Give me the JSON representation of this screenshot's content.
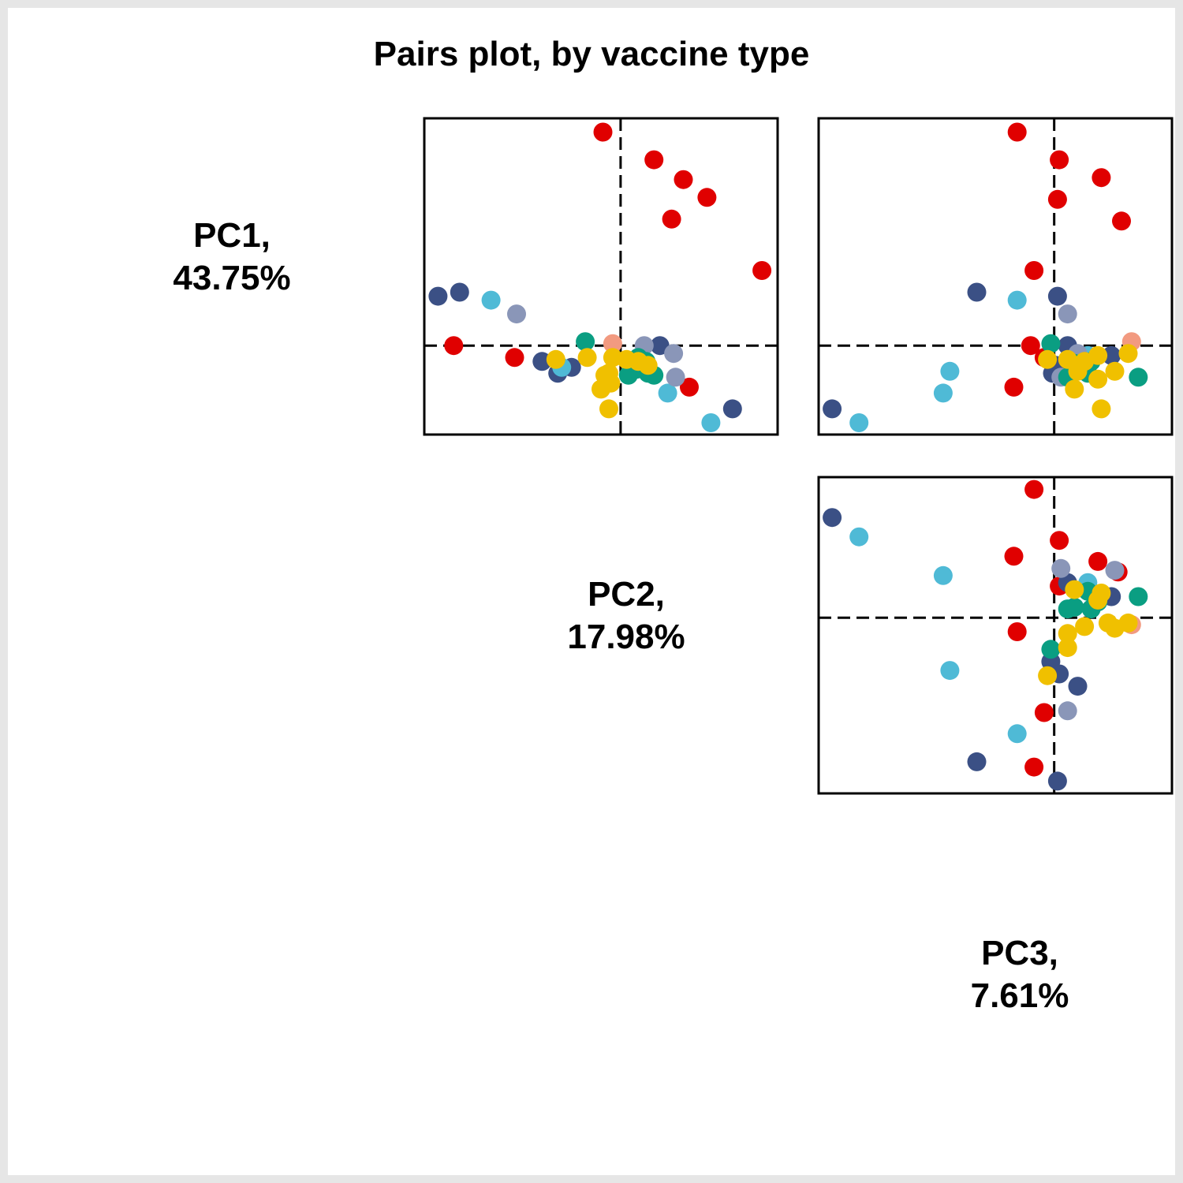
{
  "chart_data": {
    "type": "scatter",
    "title": "Pairs plot, by vaccine type",
    "variables": [
      {
        "name": "PC1,",
        "variance": "43.75%"
      },
      {
        "name": "PC2,",
        "variance": "17.98%"
      },
      {
        "name": "PC3,",
        "variance": "7.61%"
      }
    ],
    "grid": false,
    "legend": "none",
    "reference_lines": {
      "x": 0,
      "y": 0,
      "style": "dashed"
    },
    "colors": {
      "red": "#e00000",
      "navy": "#3b5085",
      "lightblue": "#4fbad6",
      "greyblue": "#8a96b8",
      "teal": "#0a9e82",
      "yellow": "#f0c000",
      "salmon": "#f29a80"
    },
    "panels": [
      {
        "id": "pc2-vs-pc1",
        "x_var": "PC2",
        "y_var": "PC1",
        "xlim": [
          -10,
          8
        ],
        "ylim": [
          -4.5,
          11.5
        ],
        "points": [
          {
            "x": -0.9,
            "y": 10.8,
            "c": "red"
          },
          {
            "x": 1.7,
            "y": 9.4,
            "c": "red"
          },
          {
            "x": 3.2,
            "y": 8.4,
            "c": "red"
          },
          {
            "x": 4.4,
            "y": 7.5,
            "c": "red"
          },
          {
            "x": 2.6,
            "y": 6.4,
            "c": "red"
          },
          {
            "x": 7.2,
            "y": 3.8,
            "c": "red"
          },
          {
            "x": -8.5,
            "y": 0,
            "c": "red"
          },
          {
            "x": -5.4,
            "y": -0.6,
            "c": "red"
          },
          {
            "x": 3.5,
            "y": -2.1,
            "c": "red"
          },
          {
            "x": -9.3,
            "y": 2.5,
            "c": "navy"
          },
          {
            "x": -8.2,
            "y": 2.7,
            "c": "navy"
          },
          {
            "x": -4.0,
            "y": -0.8,
            "c": "navy"
          },
          {
            "x": -2.5,
            "y": -1.1,
            "c": "navy"
          },
          {
            "x": -3.2,
            "y": -1.4,
            "c": "navy"
          },
          {
            "x": 2.0,
            "y": 0,
            "c": "navy"
          },
          {
            "x": 5.7,
            "y": -3.2,
            "c": "navy"
          },
          {
            "x": -6.6,
            "y": 2.3,
            "c": "lightblue"
          },
          {
            "x": -3.0,
            "y": -1.1,
            "c": "lightblue"
          },
          {
            "x": 2.4,
            "y": -2.4,
            "c": "lightblue"
          },
          {
            "x": 4.6,
            "y": -3.9,
            "c": "lightblue"
          },
          {
            "x": -5.3,
            "y": 1.6,
            "c": "greyblue"
          },
          {
            "x": 1.2,
            "y": 0,
            "c": "greyblue"
          },
          {
            "x": 2.7,
            "y": -0.4,
            "c": "greyblue"
          },
          {
            "x": 2.8,
            "y": -1.6,
            "c": "greyblue"
          },
          {
            "x": -1.8,
            "y": 0.2,
            "c": "teal"
          },
          {
            "x": 0.6,
            "y": -1.0,
            "c": "teal"
          },
          {
            "x": 0.9,
            "y": -0.6,
            "c": "teal"
          },
          {
            "x": 1.4,
            "y": -1.4,
            "c": "teal"
          },
          {
            "x": 0.4,
            "y": -1.5,
            "c": "teal"
          },
          {
            "x": 0.8,
            "y": -1.2,
            "c": "teal"
          },
          {
            "x": 1.7,
            "y": -1.5,
            "c": "teal"
          },
          {
            "x": 1.3,
            "y": -0.8,
            "c": "teal"
          },
          {
            "x": -0.4,
            "y": 0.1,
            "c": "salmon"
          },
          {
            "x": -3.3,
            "y": -0.7,
            "c": "yellow"
          },
          {
            "x": -1.7,
            "y": -0.6,
            "c": "yellow"
          },
          {
            "x": -0.4,
            "y": -0.6,
            "c": "yellow"
          },
          {
            "x": -0.6,
            "y": -1.4,
            "c": "yellow"
          },
          {
            "x": -0.5,
            "y": -1.9,
            "c": "yellow"
          },
          {
            "x": -0.8,
            "y": -1.5,
            "c": "yellow"
          },
          {
            "x": -1.0,
            "y": -2.2,
            "c": "yellow"
          },
          {
            "x": -0.6,
            "y": -3.2,
            "c": "yellow"
          },
          {
            "x": 0.3,
            "y": -0.7,
            "c": "yellow"
          },
          {
            "x": 0.9,
            "y": -0.8,
            "c": "yellow"
          },
          {
            "x": 1.4,
            "y": -1.0,
            "c": "yellow"
          }
        ]
      },
      {
        "id": "pc3-vs-pc1",
        "x_var": "PC3",
        "y_var": "PC1",
        "xlim": [
          -7,
          3.5
        ],
        "ylim": [
          -4.5,
          11.5
        ],
        "points": [
          {
            "x": -1.1,
            "y": 10.8,
            "c": "red"
          },
          {
            "x": 0.15,
            "y": 9.4,
            "c": "red"
          },
          {
            "x": 1.4,
            "y": 8.5,
            "c": "red"
          },
          {
            "x": 0.1,
            "y": 7.4,
            "c": "red"
          },
          {
            "x": 2.0,
            "y": 6.3,
            "c": "red"
          },
          {
            "x": -0.6,
            "y": 3.8,
            "c": "red"
          },
          {
            "x": -0.7,
            "y": 0,
            "c": "red"
          },
          {
            "x": -0.3,
            "y": -0.6,
            "c": "red"
          },
          {
            "x": -1.2,
            "y": -2.1,
            "c": "red"
          },
          {
            "x": -2.3,
            "y": 2.7,
            "c": "navy"
          },
          {
            "x": 0.1,
            "y": 2.5,
            "c": "navy"
          },
          {
            "x": 0.4,
            "y": 0,
            "c": "navy"
          },
          {
            "x": 0.05,
            "y": -1.0,
            "c": "navy"
          },
          {
            "x": -0.05,
            "y": -1.4,
            "c": "navy"
          },
          {
            "x": 1.7,
            "y": -0.5,
            "c": "navy"
          },
          {
            "x": -6.6,
            "y": -3.2,
            "c": "navy"
          },
          {
            "x": -1.1,
            "y": 2.3,
            "c": "lightblue"
          },
          {
            "x": -3.1,
            "y": -1.3,
            "c": "lightblue"
          },
          {
            "x": -3.3,
            "y": -2.4,
            "c": "lightblue"
          },
          {
            "x": -5.8,
            "y": -3.9,
            "c": "lightblue"
          },
          {
            "x": 1.0,
            "y": -0.5,
            "c": "lightblue"
          },
          {
            "x": 0.4,
            "y": 1.6,
            "c": "greyblue"
          },
          {
            "x": 0.7,
            "y": -0.4,
            "c": "greyblue"
          },
          {
            "x": 0.2,
            "y": -1.6,
            "c": "greyblue"
          },
          {
            "x": -0.1,
            "y": 0.1,
            "c": "teal"
          },
          {
            "x": 0.6,
            "y": -0.9,
            "c": "teal"
          },
          {
            "x": 0.8,
            "y": -1.1,
            "c": "teal"
          },
          {
            "x": 1.0,
            "y": -1.4,
            "c": "teal"
          },
          {
            "x": 0.4,
            "y": -1.6,
            "c": "teal"
          },
          {
            "x": 2.5,
            "y": -1.6,
            "c": "teal"
          },
          {
            "x": 1.1,
            "y": -0.8,
            "c": "teal"
          },
          {
            "x": 2.3,
            "y": 0.2,
            "c": "salmon"
          },
          {
            "x": -0.2,
            "y": -0.7,
            "c": "yellow"
          },
          {
            "x": 0.4,
            "y": -0.7,
            "c": "yellow"
          },
          {
            "x": 0.9,
            "y": -0.8,
            "c": "yellow"
          },
          {
            "x": 1.3,
            "y": -0.5,
            "c": "yellow"
          },
          {
            "x": 0.7,
            "y": -1.3,
            "c": "yellow"
          },
          {
            "x": 1.3,
            "y": -1.7,
            "c": "yellow"
          },
          {
            "x": 0.6,
            "y": -2.2,
            "c": "yellow"
          },
          {
            "x": 1.4,
            "y": -3.2,
            "c": "yellow"
          },
          {
            "x": 2.2,
            "y": -0.4,
            "c": "yellow"
          },
          {
            "x": 1.8,
            "y": -1.3,
            "c": "yellow"
          }
        ]
      },
      {
        "id": "pc3-vs-pc2",
        "x_var": "PC3",
        "y_var": "PC2",
        "xlim": [
          -7,
          3.5
        ],
        "ylim": [
          -10,
          8
        ],
        "points": [
          {
            "x": -0.6,
            "y": 7.3,
            "c": "red"
          },
          {
            "x": 0.15,
            "y": 4.4,
            "c": "red"
          },
          {
            "x": -1.2,
            "y": 3.5,
            "c": "red"
          },
          {
            "x": 1.3,
            "y": 3.2,
            "c": "red"
          },
          {
            "x": 0.15,
            "y": 1.8,
            "c": "red"
          },
          {
            "x": -1.1,
            "y": -0.8,
            "c": "red"
          },
          {
            "x": -0.3,
            "y": -5.4,
            "c": "red"
          },
          {
            "x": -0.6,
            "y": -8.5,
            "c": "red"
          },
          {
            "x": 1.9,
            "y": 2.6,
            "c": "red"
          },
          {
            "x": -6.6,
            "y": 5.7,
            "c": "navy"
          },
          {
            "x": 0.4,
            "y": 2.0,
            "c": "navy"
          },
          {
            "x": 1.7,
            "y": 1.2,
            "c": "navy"
          },
          {
            "x": -0.1,
            "y": -2.5,
            "c": "navy"
          },
          {
            "x": 0.15,
            "y": -3.2,
            "c": "navy"
          },
          {
            "x": 0.7,
            "y": -3.9,
            "c": "navy"
          },
          {
            "x": -2.3,
            "y": -8.2,
            "c": "navy"
          },
          {
            "x": 0.1,
            "y": -9.3,
            "c": "navy"
          },
          {
            "x": -5.8,
            "y": 4.6,
            "c": "lightblue"
          },
          {
            "x": -3.3,
            "y": 2.4,
            "c": "lightblue"
          },
          {
            "x": -3.1,
            "y": -3.0,
            "c": "lightblue"
          },
          {
            "x": -1.1,
            "y": -6.6,
            "c": "lightblue"
          },
          {
            "x": 1.0,
            "y": 2.0,
            "c": "lightblue"
          },
          {
            "x": 0.2,
            "y": 2.8,
            "c": "greyblue"
          },
          {
            "x": 1.8,
            "y": 2.7,
            "c": "greyblue"
          },
          {
            "x": 0.4,
            "y": -5.3,
            "c": "greyblue"
          },
          {
            "x": 2.5,
            "y": 1.2,
            "c": "teal"
          },
          {
            "x": 0.4,
            "y": 0.5,
            "c": "teal"
          },
          {
            "x": 1.1,
            "y": 0.5,
            "c": "teal"
          },
          {
            "x": 1.3,
            "y": 0.9,
            "c": "teal"
          },
          {
            "x": 1.0,
            "y": 1.5,
            "c": "teal"
          },
          {
            "x": -0.1,
            "y": -1.8,
            "c": "teal"
          },
          {
            "x": 0.6,
            "y": 0.6,
            "c": "teal"
          },
          {
            "x": 2.3,
            "y": -0.4,
            "c": "salmon"
          },
          {
            "x": 0.6,
            "y": 1.6,
            "c": "yellow"
          },
          {
            "x": 1.3,
            "y": 1.0,
            "c": "yellow"
          },
          {
            "x": 1.4,
            "y": 1.4,
            "c": "yellow"
          },
          {
            "x": 0.9,
            "y": -0.5,
            "c": "yellow"
          },
          {
            "x": 0.4,
            "y": -0.9,
            "c": "yellow"
          },
          {
            "x": 0.4,
            "y": -1.7,
            "c": "yellow"
          },
          {
            "x": -0.2,
            "y": -3.3,
            "c": "yellow"
          },
          {
            "x": 1.8,
            "y": -0.6,
            "c": "yellow"
          },
          {
            "x": 1.6,
            "y": -0.3,
            "c": "yellow"
          },
          {
            "x": 2.2,
            "y": -0.3,
            "c": "yellow"
          }
        ]
      }
    ]
  }
}
